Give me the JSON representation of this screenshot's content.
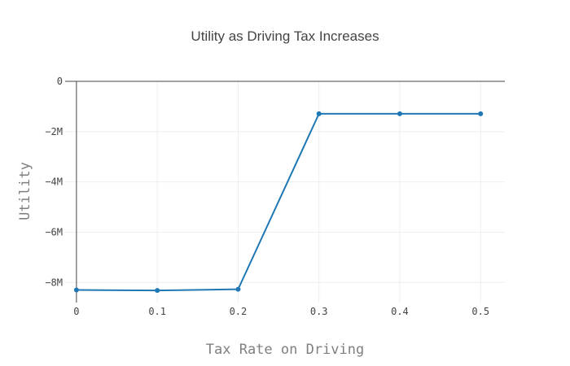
{
  "chart_data": {
    "type": "line",
    "title": "Utility as Driving Tax Increases",
    "xlabel": "Tax Rate on Driving",
    "ylabel": "Utility",
    "x": [
      0,
      0.1,
      0.2,
      0.3,
      0.4,
      0.5
    ],
    "series": [
      {
        "values": [
          -8300000,
          -8320000,
          -8270000,
          -1290000,
          -1290000,
          -1290000
        ]
      }
    ],
    "xlim": [
      -0.014,
      0.53
    ],
    "ylim": [
      -8800000.0,
      0
    ],
    "xticks": [
      0,
      0.1,
      0.2,
      0.3,
      0.4,
      0.5
    ],
    "xtick_labels": [
      "0",
      "0.1",
      "0.2",
      "0.3",
      "0.4",
      "0.5"
    ],
    "yticks": [
      0,
      -2000000,
      -4000000,
      -6000000,
      -8000000
    ],
    "ytick_labels": [
      "0",
      "−2M",
      "−4M",
      "−6M",
      "−8M"
    ],
    "grid": true,
    "color": "#1f77b4",
    "mode": "lines+markers"
  }
}
